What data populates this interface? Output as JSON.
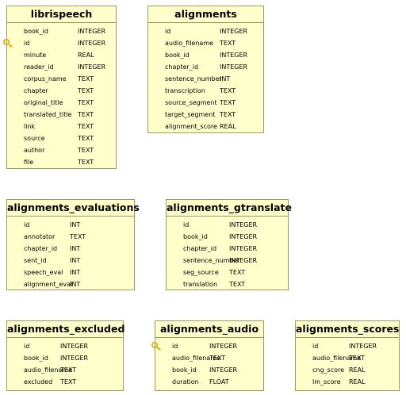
{
  "tables": {
    "librispeech": {
      "name": "librispeech",
      "columns": [
        {
          "name": "book_id",
          "type": "INTEGER"
        },
        {
          "name": "id",
          "type": "INTEGER",
          "key": true
        },
        {
          "name": "minute",
          "type": "REAL"
        },
        {
          "name": "reader_id",
          "type": "INTEGER"
        },
        {
          "name": "corpus_name",
          "type": "TEXT"
        },
        {
          "name": "chapter",
          "type": "TEXT"
        },
        {
          "name": "original_title",
          "type": "TEXT"
        },
        {
          "name": "translated_title",
          "type": "TEXT"
        },
        {
          "name": "link",
          "type": "TEXT"
        },
        {
          "name": "source",
          "type": "TEXT"
        },
        {
          "name": "author",
          "type": "TEXT"
        },
        {
          "name": "file",
          "type": "TEXT"
        }
      ]
    },
    "alignments": {
      "name": "alignments",
      "columns": [
        {
          "name": "id",
          "type": "INTEGER"
        },
        {
          "name": "audio_filename",
          "type": "TEXT"
        },
        {
          "name": "book_id",
          "type": "INTEGER"
        },
        {
          "name": "chapter_id",
          "type": "INTEGER"
        },
        {
          "name": "sentence_number",
          "type": "INT"
        },
        {
          "name": "transcription",
          "type": "TEXT"
        },
        {
          "name": "source_segment",
          "type": "TEXT"
        },
        {
          "name": "target_segment",
          "type": "TEXT"
        },
        {
          "name": "alignment_score",
          "type": "REAL"
        }
      ]
    },
    "alignments_evaluations": {
      "name": "alignments_evaluations",
      "columns": [
        {
          "name": "id",
          "type": "INT"
        },
        {
          "name": "annotator",
          "type": "TEXT"
        },
        {
          "name": "chapter_id",
          "type": "INT"
        },
        {
          "name": "sent_id",
          "type": "INT"
        },
        {
          "name": "speech_eval",
          "type": "INT"
        },
        {
          "name": "alignment_eval",
          "type": "INT"
        }
      ]
    },
    "alignments_gtranslate": {
      "name": "alignments_gtranslate",
      "columns": [
        {
          "name": "id",
          "type": "INTEGER"
        },
        {
          "name": "book_id",
          "type": "INTEGER"
        },
        {
          "name": "chapter_id",
          "type": "INTEGER"
        },
        {
          "name": "sentence_number",
          "type": "INTEGER"
        },
        {
          "name": "seg_source",
          "type": "TEXT"
        },
        {
          "name": "translation",
          "type": "TEXT"
        }
      ]
    },
    "alignments_excluded": {
      "name": "alignments_excluded",
      "columns": [
        {
          "name": "id",
          "type": "INTEGER"
        },
        {
          "name": "book_id",
          "type": "INTEGER"
        },
        {
          "name": "audio_filename",
          "type": "TEXT"
        },
        {
          "name": "excluded",
          "type": "TEXT"
        }
      ]
    },
    "alignments_audio": {
      "name": "alignments_audio",
      "columns": [
        {
          "name": "id",
          "type": "INTEGER",
          "key": true
        },
        {
          "name": "audio_filename",
          "type": "TEXT"
        },
        {
          "name": "book_id",
          "type": "INTEGER"
        },
        {
          "name": "duration",
          "type": "FLOAT"
        }
      ]
    },
    "alignments_scores": {
      "name": "alignments_scores",
      "columns": [
        {
          "name": "id",
          "type": "INTEGER"
        },
        {
          "name": "audio_filename",
          "type": "TEXT"
        },
        {
          "name": "cng_score",
          "type": "REAL"
        },
        {
          "name": "lm_score",
          "type": "REAL"
        }
      ]
    }
  },
  "colors": {
    "table_fill": "#ffffcc",
    "table_border": "#9a9a66",
    "key_icon": "#e0b020"
  },
  "icons": {
    "primary_key": "key-icon"
  }
}
